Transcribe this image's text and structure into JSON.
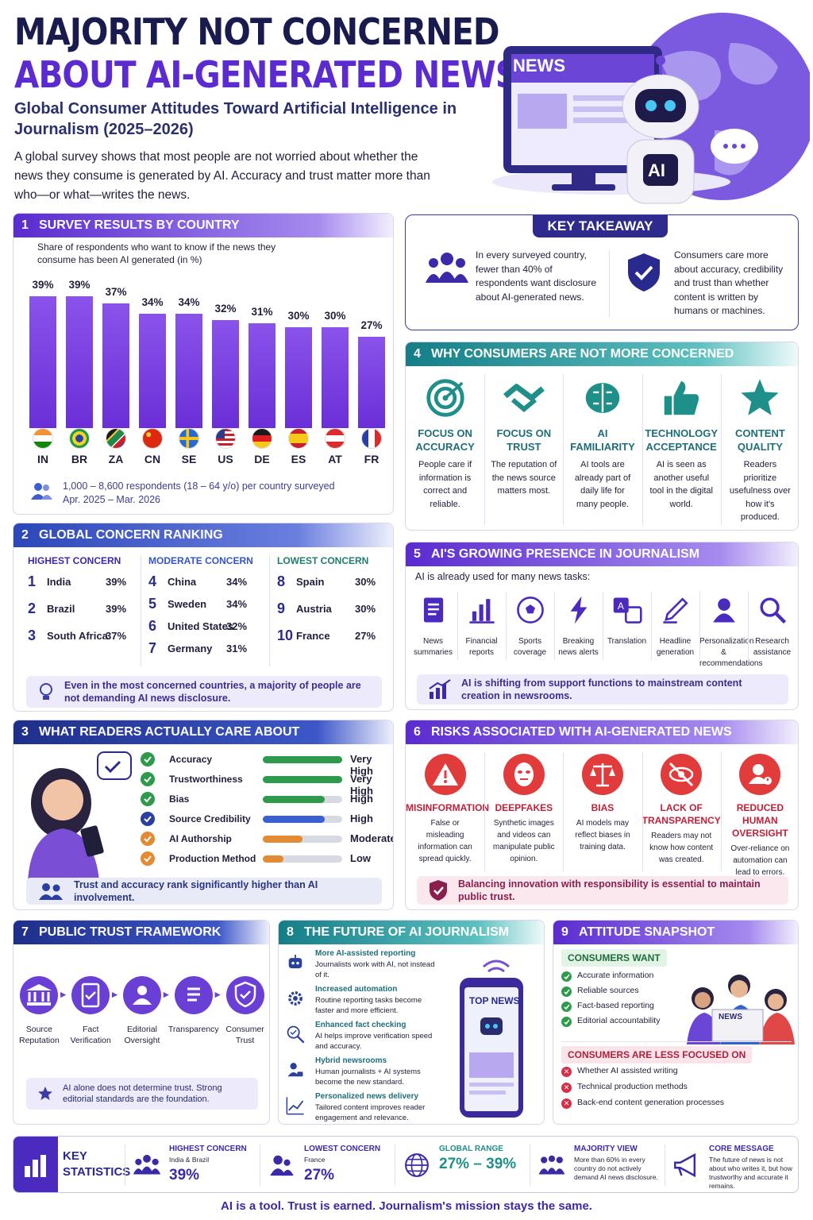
{
  "header": {
    "title_line1": "MAJORITY NOT CONCERNED",
    "title_line2": "ABOUT AI-GENERATED NEWS",
    "subtitle": "Global Consumer Attitudes Toward Artificial Intelligence in Journalism (2025–2026)",
    "intro": "A global survey shows that most people are not worried about whether the news they consume is generated by AI. Accuracy and trust matter more than who—or what—writes the news.",
    "hero_news": "NEWS",
    "hero_ai": "AI"
  },
  "s1": {
    "num": "1",
    "title": "SURVEY RESULTS BY COUNTRY",
    "desc": "Share of respondents who want to know if the news they consume has been AI generated (in %)",
    "footnote1": "1,000 – 8,600 respondents (18 – 64 y/o) per country surveyed",
    "footnote2": "Apr. 2025 – Mar. 2026"
  },
  "chart_data": {
    "type": "bar",
    "categories": [
      "IN",
      "BR",
      "ZA",
      "CN",
      "SE",
      "US",
      "DE",
      "ES",
      "AT",
      "FR"
    ],
    "values": [
      39,
      39,
      37,
      34,
      34,
      32,
      31,
      30,
      30,
      27
    ],
    "labels": [
      "39%",
      "39%",
      "37%",
      "34%",
      "34%",
      "32%",
      "31%",
      "30%",
      "30%",
      "27%"
    ],
    "title": "SURVEY RESULTS BY COUNTRY",
    "ylabel": "Share of respondents who want to know if the news they consume has been AI generated (in %)",
    "ylim": [
      0,
      40
    ],
    "color": "#7440dd"
  },
  "takeaway": {
    "title": "KEY TAKEAWAY",
    "left": "In every surveyed country, fewer than 40% of respondents want disclosure about AI-generated news.",
    "right": "Consumers care more about accuracy, credibility and trust than whether content is written by humans or machines."
  },
  "s2": {
    "num": "2",
    "title": "GLOBAL CONCERN RANKING",
    "groups": [
      {
        "title": "HIGHEST CONCERN",
        "color": "#3a2aa8",
        "items": [
          {
            "n": "1",
            "c": "India",
            "v": "39%"
          },
          {
            "n": "2",
            "c": "Brazil",
            "v": "39%"
          },
          {
            "n": "3",
            "c": "South Africa",
            "v": "37%"
          }
        ]
      },
      {
        "title": "MODERATE CONCERN",
        "color": "#3554c5",
        "items": [
          {
            "n": "4",
            "c": "China",
            "v": "34%"
          },
          {
            "n": "5",
            "c": "Sweden",
            "v": "34%"
          },
          {
            "n": "6",
            "c": "United States",
            "v": "32%"
          },
          {
            "n": "7",
            "c": "Germany",
            "v": "31%"
          }
        ]
      },
      {
        "title": "LOWEST CONCERN",
        "color": "#1f7d6e",
        "items": [
          {
            "n": "8",
            "c": "Spain",
            "v": "30%"
          },
          {
            "n": "9",
            "c": "Austria",
            "v": "30%"
          },
          {
            "n": "10",
            "c": "France",
            "v": "27%"
          }
        ]
      }
    ],
    "note": "Even in the most concerned countries, a majority of people are not demanding AI news disclosure."
  },
  "s3": {
    "num": "3",
    "title": "WHAT READERS ACTUALLY CARE ABOUT",
    "items": [
      {
        "label": "Accuracy",
        "level": "Very High",
        "value": 1.0,
        "color": "#2e9a4c"
      },
      {
        "label": "Trustworthiness",
        "level": "Very High",
        "value": 1.0,
        "color": "#2e9a4c"
      },
      {
        "label": "Bias",
        "level": "High",
        "value": 0.78,
        "color": "#2e9a4c"
      },
      {
        "label": "Source Credibility",
        "level": "High",
        "value": 0.78,
        "color": "#3b5fd0"
      },
      {
        "label": "AI Authorship",
        "level": "Moderate",
        "value": 0.5,
        "color": "#e38a34"
      },
      {
        "label": "Production Method",
        "level": "Low",
        "value": 0.26,
        "color": "#e38a34"
      }
    ],
    "note": "Trust and accuracy rank significantly higher than AI involvement."
  },
  "s4": {
    "num": "4",
    "title": "WHY CONSUMERS ARE NOT MORE CONCERNED",
    "items": [
      {
        "t1": "FOCUS ON",
        "t2": "ACCURACY",
        "d": "People care if information is correct and reliable.",
        "icon": "target-icon"
      },
      {
        "t1": "FOCUS ON",
        "t2": "TRUST",
        "d": "The reputation of the news source matters most.",
        "icon": "handshake-icon"
      },
      {
        "t1": "AI",
        "t2": "FAMILIARITY",
        "d": "AI tools are already part of daily life for many people.",
        "icon": "brain-icon"
      },
      {
        "t1": "TECHNOLOGY",
        "t2": "ACCEPTANCE",
        "d": "AI is seen as another useful tool in the digital world.",
        "icon": "thumbs-up-icon"
      },
      {
        "t1": "CONTENT",
        "t2": "QUALITY",
        "d": "Readers prioritize usefulness over how it's produced.",
        "icon": "star-icon"
      }
    ]
  },
  "s5": {
    "num": "5",
    "title": "AI'S GROWING PRESENCE IN JOURNALISM",
    "desc": "AI is already used for many news tasks:",
    "items": [
      {
        "l1": "News",
        "l2": "summaries",
        "icon": "document-icon"
      },
      {
        "l1": "Financial",
        "l2": "reports",
        "icon": "bar-chart-icon"
      },
      {
        "l1": "Sports",
        "l2": "coverage",
        "icon": "soccer-ball-icon"
      },
      {
        "l1": "Breaking",
        "l2": "news alerts",
        "icon": "lightning-icon"
      },
      {
        "l1": "Translation",
        "l2": "",
        "icon": "translate-icon"
      },
      {
        "l1": "Headline",
        "l2": "generation",
        "icon": "pencil-icon"
      },
      {
        "l1": "Personalization",
        "l2": "& recommendations",
        "icon": "person-icon"
      },
      {
        "l1": "Research",
        "l2": "assistance",
        "icon": "magnifier-icon"
      }
    ],
    "note": "AI is shifting from support functions to mainstream content creation in newsrooms."
  },
  "s6": {
    "num": "6",
    "title": "RISKS ASSOCIATED WITH AI-GENERATED NEWS",
    "items": [
      {
        "t1": "MISINFORMATION",
        "t2": "",
        "d": "False or misleading information can spread quickly.",
        "icon": "warning-icon"
      },
      {
        "t1": "DEEPFAKES",
        "t2": "",
        "d": "Synthetic images and videos can manipulate public opinion.",
        "icon": "mask-icon"
      },
      {
        "t1": "BIAS",
        "t2": "",
        "d": "AI models may reflect biases in training data.",
        "icon": "scales-icon"
      },
      {
        "t1": "LACK OF",
        "t2": "TRANSPARENCY",
        "d": "Readers may not know how content was created.",
        "icon": "eye-off-icon"
      },
      {
        "t1": "REDUCED HUMAN",
        "t2": "OVERSIGHT",
        "d": "Over-reliance on automation can lead to errors.",
        "icon": "person-alert-icon"
      }
    ],
    "note": "Balancing innovation with responsibility is essential to maintain public trust."
  },
  "s7": {
    "num": "7",
    "title": "PUBLIC TRUST FRAMEWORK",
    "steps": [
      {
        "l1": "Source",
        "l2": "Reputation",
        "icon": "institution-icon"
      },
      {
        "l1": "Fact",
        "l2": "Verification",
        "icon": "clipboard-check-icon"
      },
      {
        "l1": "Editorial",
        "l2": "Oversight",
        "icon": "editor-icon"
      },
      {
        "l1": "Transparency",
        "l2": "",
        "icon": "document-icon"
      },
      {
        "l1": "Consumer",
        "l2": "Trust",
        "icon": "shield-check-icon"
      }
    ],
    "note": "AI alone does not determine trust. Strong editorial standards are the foundation."
  },
  "s8": {
    "num": "8",
    "title": "THE FUTURE OF AI JOURNALISM",
    "items": [
      {
        "t": "More AI-assisted reporting",
        "d": "Journalists work with AI, not instead of it.",
        "icon": "robot-icon"
      },
      {
        "t": "Increased automation",
        "d": "Routine reporting tasks become faster and more efficient.",
        "icon": "gear-icon"
      },
      {
        "t": "Enhanced fact checking",
        "d": "AI helps improve verification speed and accuracy.",
        "icon": "magnifier-check-icon"
      },
      {
        "t": "Hybrid newsrooms",
        "d": "Human journalists + AI systems become the new standard.",
        "icon": "person-ai-icon"
      },
      {
        "t": "Personalized news delivery",
        "d": "Tailored content improves reader engagement and relevance.",
        "icon": "growth-chart-icon"
      }
    ],
    "phone_title": "TOP NEWS"
  },
  "s9": {
    "num": "9",
    "title": "ATTITUDE SNAPSHOT",
    "want_title": "CONSUMERS WANT",
    "want": [
      "Accurate information",
      "Reliable sources",
      "Fact-based reporting",
      "Editorial accountability"
    ],
    "less_title": "CONSUMERS ARE LESS FOCUSED ON",
    "less": [
      "Whether AI assisted writing",
      "Technical production methods",
      "Back-end content generation processes"
    ],
    "paper": "NEWS"
  },
  "stats": {
    "title1": "KEY",
    "title2": "STATISTICS",
    "items": [
      {
        "h": "HIGHEST CONCERN",
        "s": "India & Brazil",
        "v": "39%",
        "color": "#3a2aa8",
        "icon": "group-icon"
      },
      {
        "h": "LOWEST CONCERN",
        "s": "France",
        "v": "27%",
        "color": "#3a2aa8",
        "icon": "people-icon"
      },
      {
        "h": "GLOBAL RANGE",
        "s": "",
        "v": "27% – 39%",
        "color": "#1f8f8a",
        "icon": "globe-icon"
      },
      {
        "h": "MAJORITY VIEW",
        "s": "More than 60% in every country do not actively demand AI news disclosure.",
        "v": "",
        "color": "#3a2aa8",
        "icon": "crowd-icon"
      },
      {
        "h": "CORE MESSAGE",
        "s": "The future of news is not about who writes it, but how trustworthy and accurate it remains.",
        "v": "",
        "color": "#3a2aa8",
        "icon": "megaphone-icon"
      }
    ]
  },
  "footer": "AI is a tool.  Trust is earned.  Journalism's mission stays the same."
}
